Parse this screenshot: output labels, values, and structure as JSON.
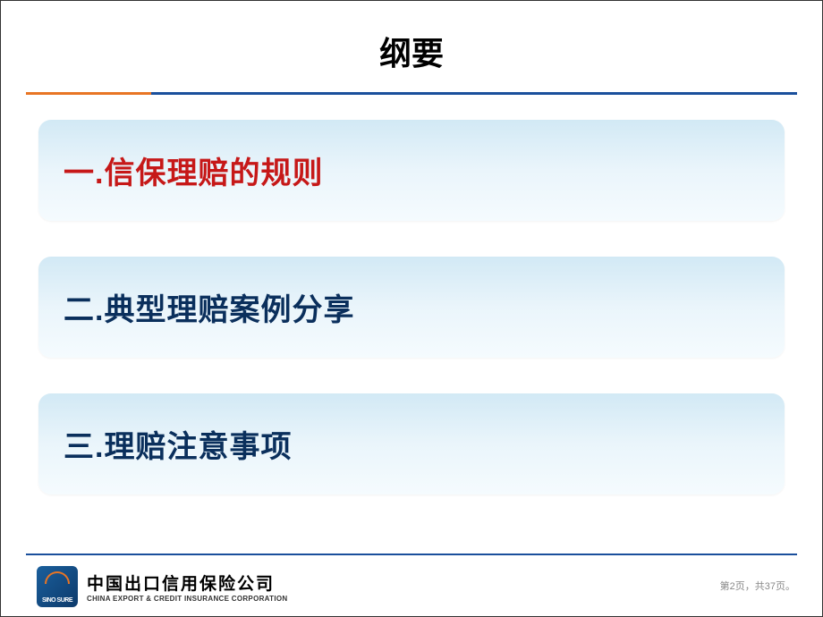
{
  "title": "纲要",
  "outline": [
    {
      "text": "一.信保理赔的规则",
      "colorClass": "outline-red"
    },
    {
      "text": "二.典型理赔案例分享",
      "colorClass": "outline-navy"
    },
    {
      "text": "三.理赔注意事项",
      "colorClass": "outline-navy"
    }
  ],
  "divider": {
    "orange": "#e87524",
    "blue": "#1a4f9c"
  },
  "outline_box": {
    "bg_gradient_from": "#d2e9f5",
    "bg_gradient_mid": "#eaf5fb",
    "bg_gradient_to": "#f5fbfe",
    "border_radius": 14,
    "fontsize": 34
  },
  "colors": {
    "red": "#c61818",
    "navy": "#0a2f5c",
    "background": "#ffffff"
  },
  "logo": {
    "short": "SINO SURE",
    "bg_from": "#1a5f9c",
    "bg_to": "#0d3a6b",
    "arc_color": "#e87524"
  },
  "company": {
    "cn": "中国出口信用保险公司",
    "en": "CHINA EXPORT & CREDIT INSURANCE CORPORATION"
  },
  "pager": "第2页，共37页。"
}
